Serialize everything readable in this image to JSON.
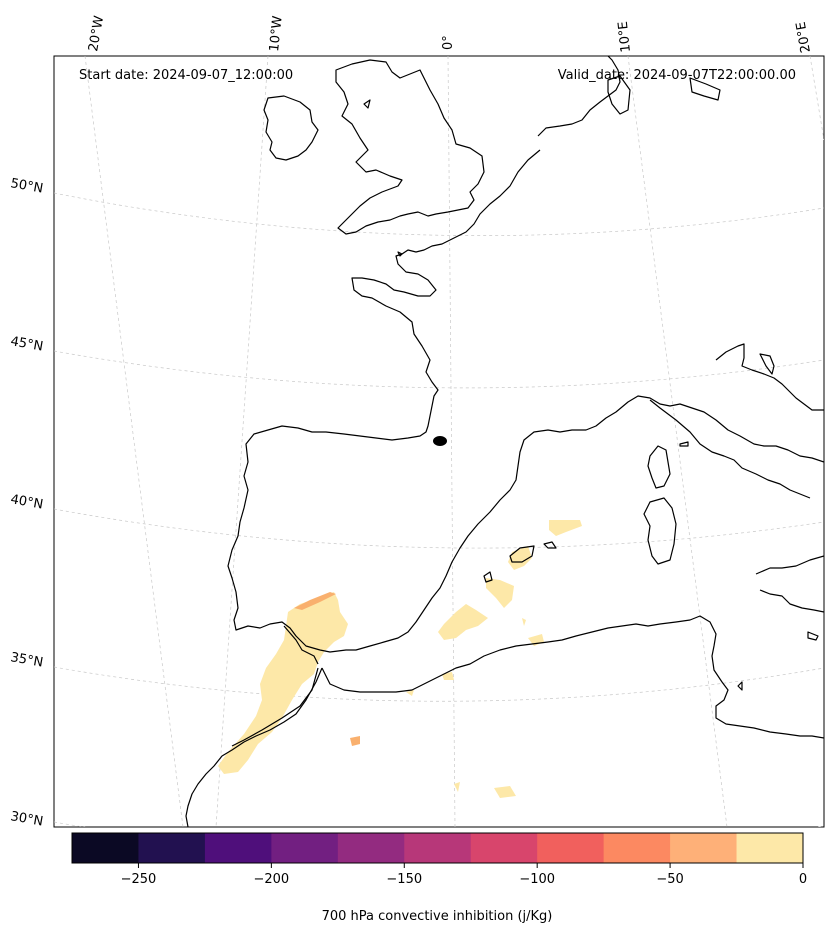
{
  "map": {
    "start_label": "Start date: 2024-09-07_12:00:00",
    "valid_label": "Valid_date: 2024-09-07T22:00:00.00",
    "lon_labels": [
      "20°W",
      "10°W",
      "0°",
      "10°E",
      "20°E"
    ],
    "lat_labels": [
      "50°N",
      "45°N",
      "40°N",
      "35°N",
      "30°N"
    ],
    "region": "Western Europe / North Africa",
    "field": "700 hPa convective inhibition"
  },
  "colorbar": {
    "label": "700 hPa convective inhibition (j/Kg)",
    "tick_labels": [
      "−250",
      "−200",
      "−150",
      "−100",
      "−50",
      "0"
    ],
    "range": [
      -275,
      0
    ],
    "step": 25,
    "colors": [
      "#0b0924",
      "#221150",
      "#4f0f7b",
      "#721f81",
      "#932b80",
      "#b73779",
      "#d8456c",
      "#f1605d",
      "#fc8961",
      "#feb078",
      "#fde8a8"
    ]
  },
  "colors": {
    "coastline": "#000000",
    "gridline": "#c8c8c8",
    "cin_weak": "#fde8a8",
    "cin_moderate": "#f9b06e",
    "cin_marker": "#000000"
  }
}
